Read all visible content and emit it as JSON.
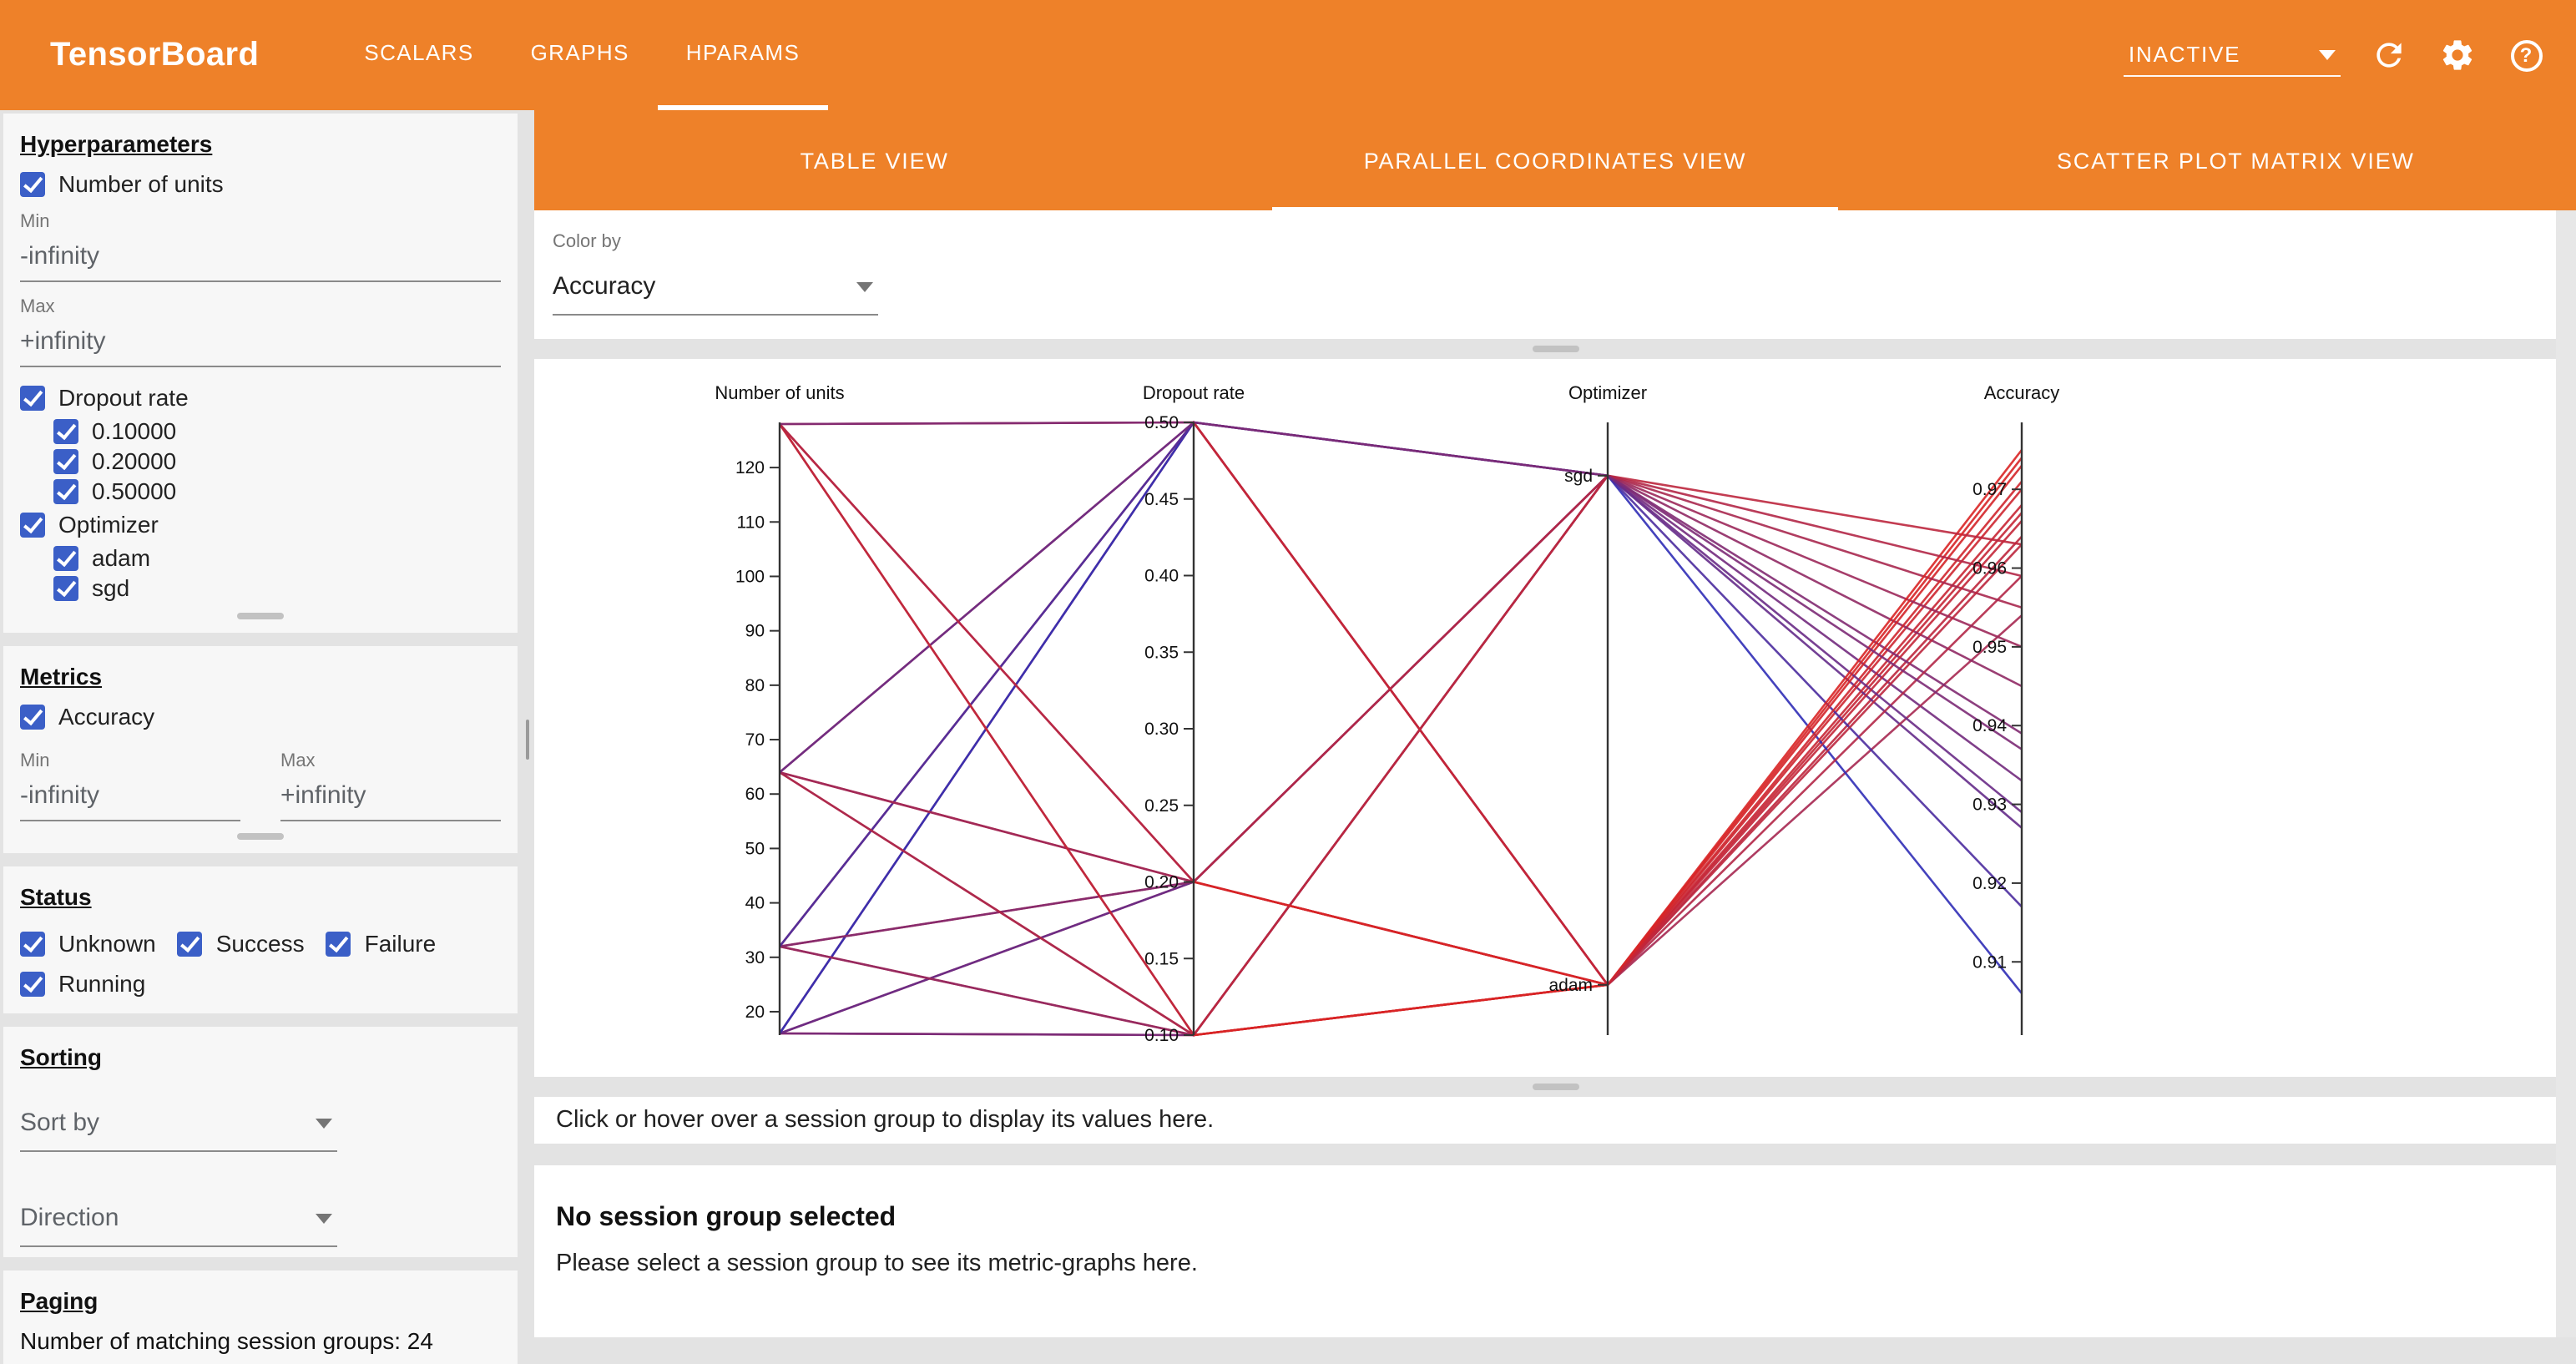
{
  "header": {
    "title": "TensorBoard",
    "nav": {
      "scalars": "SCALARS",
      "graphs": "GRAPHS",
      "hparams": "HPARAMS"
    },
    "run_status": "INACTIVE"
  },
  "sidebar": {
    "hyperparameters_heading": "Hyperparameters",
    "units": {
      "label": "Number of units",
      "min_label": "Min",
      "min_value": "-infinity",
      "max_label": "Max",
      "max_value": "+infinity"
    },
    "dropout": {
      "label": "Dropout rate",
      "options": [
        "0.10000",
        "0.20000",
        "0.50000"
      ]
    },
    "optimizer": {
      "label": "Optimizer",
      "options": [
        "adam",
        "sgd"
      ]
    },
    "metrics_heading": "Metrics",
    "accuracy": {
      "label": "Accuracy",
      "min_label": "Min",
      "min_value": "-infinity",
      "max_label": "Max",
      "max_value": "+infinity"
    },
    "status_heading": "Status",
    "status_options": [
      "Unknown",
      "Success",
      "Failure",
      "Running"
    ],
    "sorting_heading": "Sorting",
    "sort_by_placeholder": "Sort by",
    "direction_placeholder": "Direction",
    "paging_heading": "Paging",
    "paging_text": "Number of matching session groups: 24"
  },
  "main": {
    "view_tabs": {
      "table": "TABLE VIEW",
      "parallel": "PARALLEL COORDINATES VIEW",
      "scatter": "SCATTER PLOT MATRIX VIEW"
    },
    "color_by_label": "Color by",
    "color_by_value": "Accuracy",
    "hover_hint": "Click or hover over a session group to display its values here.",
    "empty_title": "No session group selected",
    "empty_text": "Please select a session group to see its metric-graphs here."
  },
  "chart_data": {
    "type": "parallel_coordinates",
    "color_by": "Accuracy",
    "color_scale": {
      "min": 0.905,
      "max": 0.975,
      "low": "#2e2eb8",
      "high": "#d92525"
    },
    "axes": [
      {
        "key": "units",
        "title": "Number of units",
        "type": "numeric",
        "domain": [
          15.7,
          128.3
        ],
        "ticks": [
          20,
          30,
          40,
          50,
          60,
          70,
          80,
          90,
          100,
          110,
          120
        ]
      },
      {
        "key": "dropout",
        "title": "Dropout rate",
        "type": "numeric",
        "domain": [
          0.1,
          0.5
        ],
        "decimals": 2,
        "ticks": [
          0.1,
          0.15,
          0.2,
          0.25,
          0.3,
          0.35,
          0.4,
          0.45,
          0.5
        ]
      },
      {
        "key": "optimizer",
        "title": "Optimizer",
        "type": "categorical",
        "categories": [
          {
            "label": "sgd",
            "pos": 0.087
          },
          {
            "label": "adam",
            "pos": 0.918
          }
        ]
      },
      {
        "key": "accuracy",
        "title": "Accuracy",
        "type": "numeric",
        "domain": [
          0.9007,
          0.9785
        ],
        "decimals": 2,
        "ticks": [
          0.91,
          0.92,
          0.93,
          0.94,
          0.95,
          0.96,
          0.97
        ]
      }
    ],
    "runs": [
      {
        "units": 16,
        "dropout": 0.1,
        "optimizer": "adam",
        "accuracy": 0.967
      },
      {
        "units": 16,
        "dropout": 0.1,
        "optimizer": "sgd",
        "accuracy": 0.933
      },
      {
        "units": 16,
        "dropout": 0.2,
        "optimizer": "adam",
        "accuracy": 0.964
      },
      {
        "units": 16,
        "dropout": 0.2,
        "optimizer": "sgd",
        "accuracy": 0.927
      },
      {
        "units": 16,
        "dropout": 0.5,
        "optimizer": "adam",
        "accuracy": 0.954
      },
      {
        "units": 16,
        "dropout": 0.5,
        "optimizer": "sgd",
        "accuracy": 0.906
      },
      {
        "units": 32,
        "dropout": 0.1,
        "optimizer": "adam",
        "accuracy": 0.97
      },
      {
        "units": 32,
        "dropout": 0.1,
        "optimizer": "sgd",
        "accuracy": 0.945
      },
      {
        "units": 32,
        "dropout": 0.2,
        "optimizer": "adam",
        "accuracy": 0.968
      },
      {
        "units": 32,
        "dropout": 0.2,
        "optimizer": "sgd",
        "accuracy": 0.939
      },
      {
        "units": 32,
        "dropout": 0.5,
        "optimizer": "adam",
        "accuracy": 0.959
      },
      {
        "units": 32,
        "dropout": 0.5,
        "optimizer": "sgd",
        "accuracy": 0.917
      },
      {
        "units": 64,
        "dropout": 0.1,
        "optimizer": "adam",
        "accuracy": 0.973
      },
      {
        "units": 64,
        "dropout": 0.1,
        "optimizer": "sgd",
        "accuracy": 0.955
      },
      {
        "units": 64,
        "dropout": 0.2,
        "optimizer": "adam",
        "accuracy": 0.971
      },
      {
        "units": 64,
        "dropout": 0.2,
        "optimizer": "sgd",
        "accuracy": 0.95
      },
      {
        "units": 64,
        "dropout": 0.5,
        "optimizer": "adam",
        "accuracy": 0.963
      },
      {
        "units": 64,
        "dropout": 0.5,
        "optimizer": "sgd",
        "accuracy": 0.929
      },
      {
        "units": 128,
        "dropout": 0.1,
        "optimizer": "adam",
        "accuracy": 0.975
      },
      {
        "units": 128,
        "dropout": 0.1,
        "optimizer": "sgd",
        "accuracy": 0.963
      },
      {
        "units": 128,
        "dropout": 0.2,
        "optimizer": "adam",
        "accuracy": 0.974
      },
      {
        "units": 128,
        "dropout": 0.2,
        "optimizer": "sgd",
        "accuracy": 0.959
      },
      {
        "units": 128,
        "dropout": 0.5,
        "optimizer": "adam",
        "accuracy": 0.966
      },
      {
        "units": 128,
        "dropout": 0.5,
        "optimizer": "sgd",
        "accuracy": 0.937
      }
    ]
  }
}
